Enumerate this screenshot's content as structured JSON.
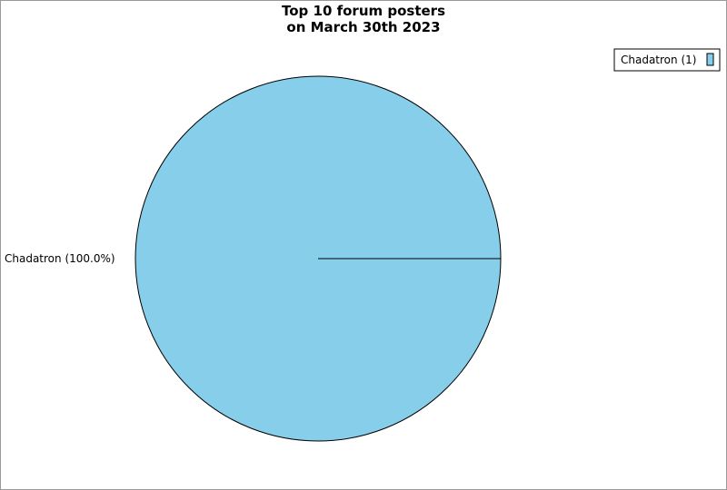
{
  "chart_data": {
    "type": "pie",
    "title_line1": "Top 10 forum posters",
    "title_line2": "on March 30th 2023",
    "slices": [
      {
        "label": "Chadatron",
        "value": 1,
        "percent_label": "Chadatron (100.0%)",
        "legend_label": "Chadatron (1)",
        "color": "#87CEEB"
      }
    ],
    "legend_placement": "top-right"
  }
}
